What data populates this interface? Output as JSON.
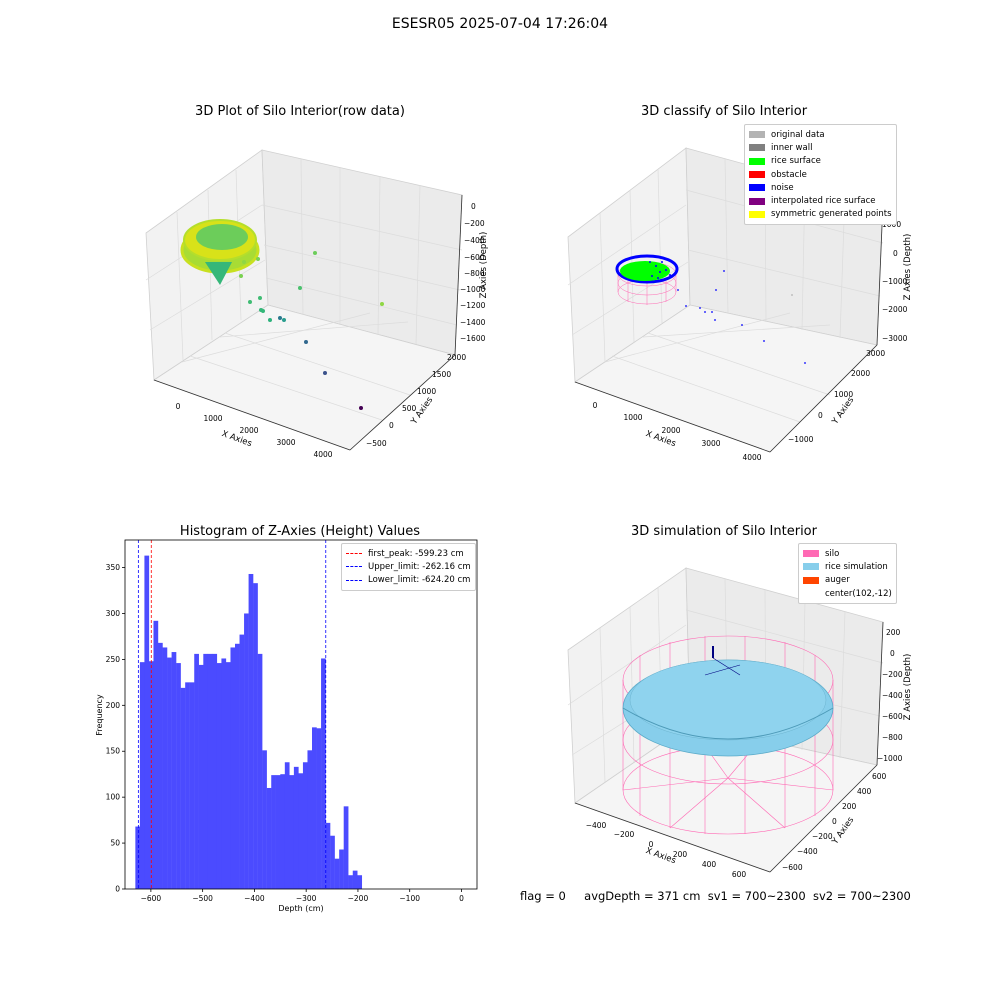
{
  "figure": {
    "suptitle": "ESESR05 2025-07-04 17:26:04",
    "footer": {
      "flag": "flag = 0",
      "avg_depth": "avgDepth = 371 cm",
      "sv1": "sv1 = 700~2300",
      "sv2": "sv2 = 700~2300"
    }
  },
  "chart_data": [
    {
      "type": "scatter",
      "title": "3D Plot of Silo Interior(row data)",
      "xlabel": "X Axies",
      "ylabel": "Y Axies",
      "zlabel": "Z Axies (Depth)",
      "x_ticks": [
        "0",
        "1000",
        "2000",
        "3000",
        "4000"
      ],
      "y_ticks": [
        "−500",
        "0",
        "500",
        "1000",
        "1500",
        "2000"
      ],
      "z_ticks": [
        "0",
        "−200",
        "−400",
        "−600",
        "−800",
        "−1000",
        "−1200",
        "−1400",
        "−1600"
      ],
      "colormap": "viridis",
      "grid": true
    },
    {
      "type": "scatter",
      "title": "3D classify of Silo Interior",
      "xlabel": "X Axies",
      "ylabel": "Y Axies",
      "zlabel": "Z Axies (Depth)",
      "x_ticks": [
        "0",
        "1000",
        "2000",
        "3000",
        "4000"
      ],
      "y_ticks": [
        "−1000",
        "0",
        "1000",
        "2000",
        "3000"
      ],
      "z_ticks": [
        "1000",
        "0",
        "−1000",
        "−2000",
        "−3000"
      ],
      "legend_position": "top-right",
      "legend": [
        {
          "label": "original data",
          "color": "#b3b3b3"
        },
        {
          "label": "inner wall",
          "color": "#808080"
        },
        {
          "label": "rice surface",
          "color": "#00ff00"
        },
        {
          "label": "obstacle",
          "color": "#ff0000"
        },
        {
          "label": "noise",
          "color": "#0000ff"
        },
        {
          "label": "interpolated rice surface",
          "color": "#800080"
        },
        {
          "label": "symmetric generated points",
          "color": "#ffff00"
        }
      ],
      "grid": true
    },
    {
      "type": "bar",
      "title": "Histogram of Z-Axies (Height) Values",
      "xlabel": "Depth (cm)",
      "ylabel": "Frequency",
      "xlim": [
        -650,
        30
      ],
      "ylim": [
        0,
        380
      ],
      "x_ticks": [
        -600,
        -500,
        -400,
        -300,
        -200,
        -100,
        0
      ],
      "y_ticks": [
        0,
        50,
        100,
        150,
        200,
        250,
        300,
        350
      ],
      "bin_start": -630,
      "bin_width": 8.75,
      "values": [
        68,
        247,
        363,
        248,
        292,
        268,
        263,
        252,
        258,
        246,
        219,
        225,
        225,
        256,
        244,
        256,
        256,
        256,
        246,
        251,
        247,
        263,
        267,
        277,
        300,
        343,
        333,
        256,
        151,
        110,
        124,
        124,
        125,
        138,
        124,
        133,
        126,
        138,
        151,
        176,
        175,
        251,
        72,
        58,
        33,
        43,
        90,
        15,
        20,
        15
      ],
      "bar_color": "#4b4bff",
      "vlines": [
        {
          "label": "first_peak: -599.23 cm",
          "x": -599.23,
          "color": "#ff0000"
        },
        {
          "label": "Upper_limit: -262.16 cm",
          "x": -262.16,
          "color": "#0000ff"
        },
        {
          "label": "Lower_limit: -624.20 cm",
          "x": -624.2,
          "color": "#0000ff"
        }
      ],
      "legend_position": "top-right"
    },
    {
      "type": "surface",
      "title": "3D simulation of Silo Interior",
      "xlabel": "X Axies",
      "ylabel": "Y Axies",
      "zlabel": "Z Axies (Depth)",
      "x_ticks": [
        "−400",
        "−200",
        "0",
        "200",
        "400",
        "600"
      ],
      "y_ticks": [
        "−600",
        "−400",
        "−200",
        "0",
        "200",
        "400",
        "600"
      ],
      "z_ticks": [
        "200",
        "0",
        "−200",
        "−400",
        "−600",
        "−800",
        "−1000"
      ],
      "legend_position": "top-right",
      "legend": [
        {
          "label": "silo",
          "color": "#ff69b4"
        },
        {
          "label": "rice simulation",
          "color": "#87ceeb"
        },
        {
          "label": "auger",
          "color": "#ff4500"
        },
        {
          "label": "center(102,-12)",
          "color": ""
        }
      ],
      "grid": true
    }
  ]
}
